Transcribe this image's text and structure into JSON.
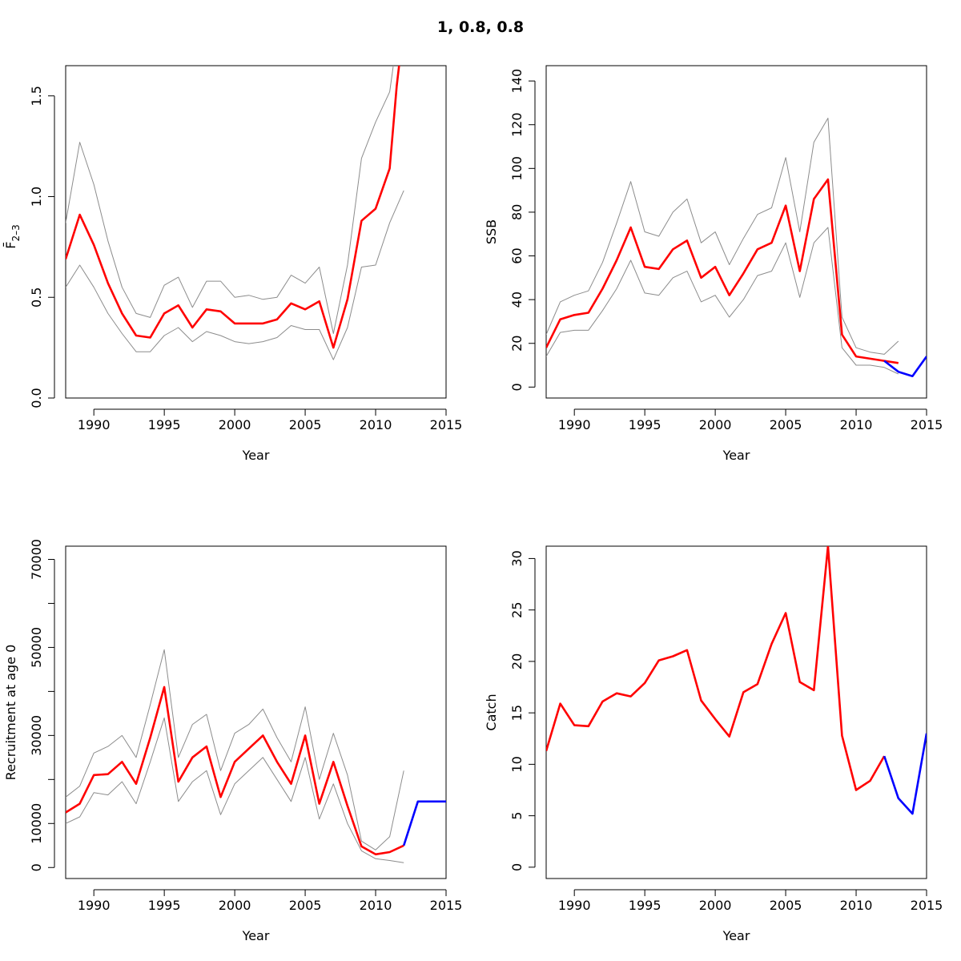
{
  "title": "1, 0.8, 0.8",
  "chart_data": [
    {
      "type": "line",
      "id": "fbar",
      "xlabel": "Year",
      "ylabel": "F̄",
      "ylabel_sub": "2–3",
      "xlim": [
        1988,
        2015
      ],
      "ylim": [
        0,
        1.65
      ],
      "xticks": [
        1990,
        1995,
        2000,
        2005,
        2010,
        2015
      ],
      "yticks": [
        0.0,
        0.5,
        1.0,
        1.5
      ],
      "ytick_labels": [
        "0.0",
        "0.5",
        "1.0",
        "1.5"
      ],
      "series": [
        {
          "role": "upper",
          "color": "#8c8c8c",
          "x": [
            1988,
            1989,
            1990,
            1991,
            1992,
            1993,
            1994,
            1995,
            1996,
            1997,
            1998,
            1999,
            2000,
            2001,
            2002,
            2003,
            2004,
            2005,
            2006,
            2007,
            2008,
            2009,
            2010,
            2011,
            2011.2,
            2011.35
          ],
          "y": [
            0.87,
            1.27,
            1.06,
            0.78,
            0.55,
            0.42,
            0.4,
            0.56,
            0.6,
            0.45,
            0.58,
            0.58,
            0.5,
            0.51,
            0.49,
            0.5,
            0.61,
            0.57,
            0.65,
            0.32,
            0.66,
            1.19,
            1.37,
            1.52,
            1.62,
            1.7
          ]
        },
        {
          "role": "estimate",
          "color": "#ff0000",
          "x": [
            1988,
            1989,
            1990,
            1991,
            1992,
            1993,
            1994,
            1995,
            1996,
            1997,
            1998,
            1999,
            2000,
            2001,
            2002,
            2003,
            2004,
            2005,
            2006,
            2007,
            2008,
            2009,
            2010,
            2011,
            2011.5,
            2011.75
          ],
          "y": [
            0.69,
            0.91,
            0.76,
            0.57,
            0.42,
            0.31,
            0.3,
            0.42,
            0.46,
            0.35,
            0.44,
            0.43,
            0.37,
            0.37,
            0.37,
            0.39,
            0.47,
            0.44,
            0.48,
            0.25,
            0.49,
            0.88,
            0.94,
            1.14,
            1.55,
            1.7
          ]
        },
        {
          "role": "lower",
          "color": "#8c8c8c",
          "x": [
            1988,
            1989,
            1990,
            1991,
            1992,
            1993,
            1994,
            1995,
            1996,
            1997,
            1998,
            1999,
            2000,
            2001,
            2002,
            2003,
            2004,
            2005,
            2006,
            2007,
            2008,
            2009,
            2010,
            2011,
            2012
          ],
          "y": [
            0.55,
            0.66,
            0.55,
            0.42,
            0.32,
            0.23,
            0.23,
            0.31,
            0.35,
            0.28,
            0.33,
            0.31,
            0.28,
            0.27,
            0.28,
            0.3,
            0.36,
            0.34,
            0.34,
            0.19,
            0.35,
            0.65,
            0.66,
            0.87,
            1.03
          ]
        }
      ]
    },
    {
      "type": "line",
      "id": "ssb",
      "xlabel": "Year",
      "ylabel": "SSB",
      "xlim": [
        1988,
        2015
      ],
      "ylim": [
        -5,
        147
      ],
      "xticks": [
        1990,
        1995,
        2000,
        2005,
        2010,
        2015
      ],
      "yticks": [
        0,
        20,
        40,
        60,
        80,
        100,
        120,
        140
      ],
      "ytick_labels": [
        "0",
        "20",
        "40",
        "60",
        "80",
        "100",
        "120",
        "140"
      ],
      "series": [
        {
          "role": "upper",
          "color": "#8c8c8c",
          "x": [
            1988,
            1989,
            1990,
            1991,
            1992,
            1993,
            1994,
            1995,
            1996,
            1997,
            1998,
            1999,
            2000,
            2001,
            2002,
            2003,
            2004,
            2005,
            2006,
            2007,
            2008,
            2009,
            2010,
            2011,
            2012,
            2013
          ],
          "y": [
            24,
            39,
            42,
            44,
            57,
            75,
            94,
            71,
            69,
            80,
            86,
            66,
            71,
            56,
            68,
            79,
            82,
            105,
            71,
            112,
            123,
            32,
            18,
            16,
            15,
            21
          ]
        },
        {
          "role": "estimate",
          "color": "#ff0000",
          "x": [
            1988,
            1989,
            1990,
            1991,
            1992,
            1993,
            1994,
            1995,
            1996,
            1997,
            1998,
            1999,
            2000,
            2001,
            2002,
            2003,
            2004,
            2005,
            2006,
            2007,
            2008,
            2009,
            2010,
            2011,
            2012,
            2013
          ],
          "y": [
            18,
            31,
            33,
            34,
            45,
            58,
            73,
            55,
            54,
            63,
            67,
            50,
            55,
            42,
            52,
            63,
            66,
            83,
            53,
            86,
            95,
            24,
            14,
            13,
            12,
            11
          ]
        },
        {
          "role": "lower",
          "color": "#8c8c8c",
          "x": [
            1988,
            1989,
            1990,
            1991,
            1992,
            1993,
            1994,
            1995,
            1996,
            1997,
            1998,
            1999,
            2000,
            2001,
            2002,
            2003,
            2004,
            2005,
            2006,
            2007,
            2008,
            2009,
            2010,
            2011,
            2012,
            2013
          ],
          "y": [
            14,
            25,
            26,
            26,
            35,
            45,
            58,
            43,
            42,
            50,
            53,
            39,
            42,
            32,
            40,
            51,
            53,
            66,
            41,
            66,
            73,
            18,
            10,
            10,
            9,
            6
          ]
        },
        {
          "role": "projection",
          "color": "#0000ff",
          "x": [
            2012,
            2013,
            2014,
            2015
          ],
          "y": [
            12,
            7,
            5,
            14
          ]
        }
      ]
    },
    {
      "type": "line",
      "id": "recruitment",
      "xlabel": "Year",
      "ylabel": "Recruitment at age 0",
      "xlim": [
        1988,
        2015
      ],
      "ylim": [
        -2500,
        73000
      ],
      "xticks": [
        1990,
        1995,
        2000,
        2005,
        2010,
        2015
      ],
      "yticks": [
        0,
        10000,
        20000,
        30000,
        40000,
        50000,
        60000,
        70000
      ],
      "ytick_labels": [
        "0",
        "10000",
        "",
        "30000",
        "",
        "50000",
        "",
        "70000"
      ],
      "series": [
        {
          "role": "upper",
          "color": "#8c8c8c",
          "x": [
            1988,
            1989,
            1990,
            1991,
            1992,
            1993,
            1994,
            1995,
            1996,
            1997,
            1998,
            1999,
            2000,
            2001,
            2002,
            2003,
            2004,
            2005,
            2006,
            2007,
            2008,
            2009,
            2010,
            2011,
            2012
          ],
          "y": [
            16000,
            18500,
            26000,
            27500,
            30000,
            25000,
            37000,
            49500,
            25000,
            32500,
            34800,
            22000,
            30500,
            32500,
            36000,
            29500,
            24000,
            36500,
            20000,
            30500,
            21000,
            6000,
            4000,
            7000,
            22000
          ]
        },
        {
          "role": "estimate",
          "color": "#ff0000",
          "x": [
            1988,
            1989,
            1990,
            1991,
            1992,
            1993,
            1994,
            1995,
            1996,
            1997,
            1998,
            1999,
            2000,
            2001,
            2002,
            2003,
            2004,
            2005,
            2006,
            2007,
            2008,
            2009,
            2010,
            2011,
            2012
          ],
          "y": [
            12500,
            14500,
            21000,
            21200,
            24000,
            19000,
            29500,
            41000,
            19500,
            25000,
            27500,
            16000,
            24000,
            27000,
            30000,
            24000,
            19000,
            30000,
            14500,
            24000,
            14000,
            4800,
            3000,
            3500,
            5000
          ]
        },
        {
          "role": "lower",
          "color": "#8c8c8c",
          "x": [
            1988,
            1989,
            1990,
            1991,
            1992,
            1993,
            1994,
            1995,
            1996,
            1997,
            1998,
            1999,
            2000,
            2001,
            2002,
            2003,
            2004,
            2005,
            2006,
            2007,
            2008,
            2009,
            2010,
            2011,
            2012
          ],
          "y": [
            10000,
            11500,
            17000,
            16500,
            19500,
            14500,
            24000,
            34000,
            15000,
            19500,
            22000,
            12000,
            19000,
            22000,
            25000,
            20000,
            15000,
            25000,
            11000,
            19000,
            10000,
            3800,
            2000,
            1600,
            1100
          ]
        },
        {
          "role": "projection",
          "color": "#0000ff",
          "x": [
            2012,
            2013,
            2014,
            2015
          ],
          "y": [
            5000,
            15000,
            15000,
            15000
          ]
        }
      ]
    },
    {
      "type": "line",
      "id": "catch",
      "xlabel": "Year",
      "ylabel": "Catch",
      "xlim": [
        1988,
        2015
      ],
      "ylim": [
        -1.1,
        31.2
      ],
      "xticks": [
        1990,
        1995,
        2000,
        2005,
        2010,
        2015
      ],
      "yticks": [
        0,
        5,
        10,
        15,
        20,
        25,
        30
      ],
      "ytick_labels": [
        "0",
        "5",
        "10",
        "15",
        "20",
        "25",
        "30"
      ],
      "series": [
        {
          "role": "observed",
          "color": "#ff0000",
          "x": [
            1988,
            1989,
            1990,
            1991,
            1992,
            1993,
            1994,
            1995,
            1996,
            1997,
            1998,
            1999,
            2000,
            2001,
            2002,
            2003,
            2004,
            2005,
            2006,
            2007,
            2008,
            2009,
            2010,
            2011,
            2012
          ],
          "y": [
            11.3,
            15.9,
            13.8,
            13.7,
            16.1,
            16.9,
            16.6,
            17.9,
            20.1,
            20.5,
            21.1,
            16.2,
            14.4,
            12.7,
            17.0,
            17.8,
            21.7,
            24.7,
            18.0,
            17.2,
            31.2,
            12.8,
            7.5,
            8.4,
            10.8
          ]
        },
        {
          "role": "projection",
          "color": "#0000ff",
          "x": [
            2012,
            2013,
            2014,
            2015
          ],
          "y": [
            10.8,
            6.7,
            5.2,
            13.0
          ]
        }
      ]
    }
  ]
}
